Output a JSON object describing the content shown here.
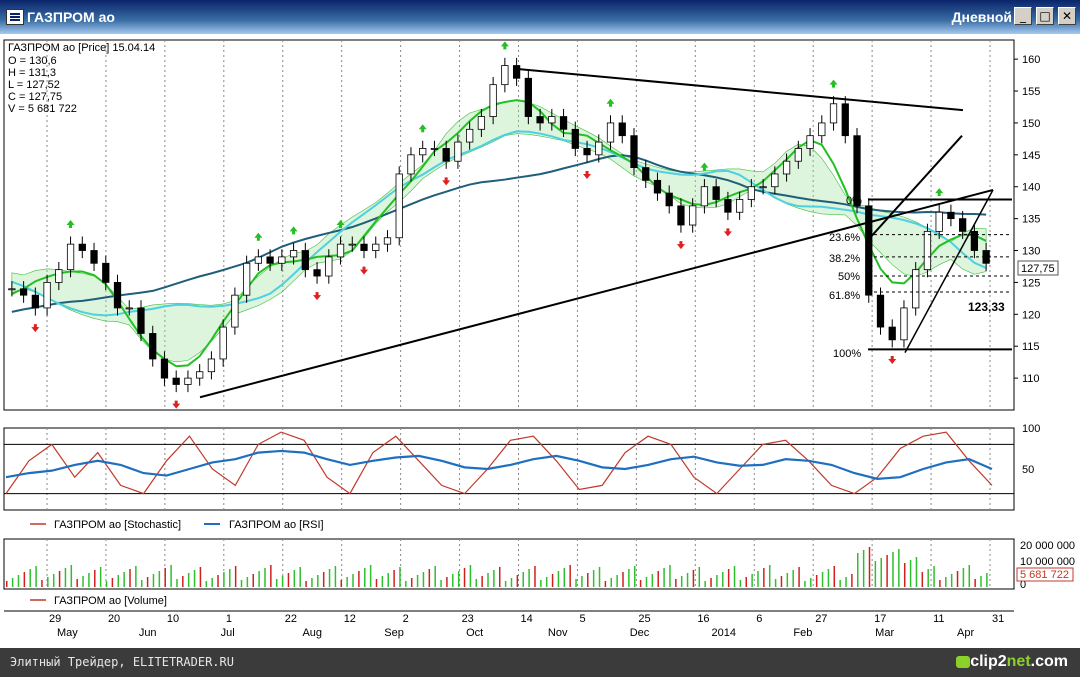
{
  "window": {
    "title": "ГАЗПРОМ ао",
    "period": "Дневной",
    "btn_min": "_",
    "btn_max": "□",
    "btn_close": "✕"
  },
  "info": {
    "header": "ГАЗПРОМ ао [Price] 15.04.14",
    "open": "O = 130,6",
    "high": "H = 131,3",
    "low": "L = 127,52",
    "close": "C = 127,75",
    "volume": "V = 5 681 722"
  },
  "legend": {
    "stochastic": "ГАЗПРОМ ао [Stochastic]",
    "rsi": "ГАЗПРОМ ао [RSI]",
    "volume": "ГАЗПРОМ ао [Volume]"
  },
  "annotations": {
    "current_price": "127,75",
    "target": "123,33",
    "current_volume": "5 681 722"
  },
  "fibo": [
    "0%",
    "23.6%",
    "38.2%",
    "50%",
    "61.8%",
    "100%"
  ],
  "colors": {
    "rsi": "#1f6fc0",
    "stochastic": "#c0392b",
    "up_arrow": "#22c022",
    "down_arrow": "#e02020",
    "cloud": "#9fe09f",
    "ma_long": "#1f5f7a",
    "ma_mid": "#4fd0e0",
    "ma_fast": "#22c022"
  },
  "statusbar": {
    "left": "Элитный Трейдер, ELITETRADER.RU",
    "brand_a": "clip2",
    "brand_b": "net",
    "brand_c": ".com"
  },
  "chart_data": [
    {
      "type": "candlestick",
      "title": "ГАЗПРОМ ао [Price] 15.04.14",
      "ylim": [
        105,
        163
      ],
      "y_ticks": [
        110,
        115,
        120,
        125,
        130,
        135,
        140,
        145,
        150,
        155,
        160
      ],
      "x_day_labels": [
        "29",
        "20",
        "10",
        "1",
        "22",
        "12",
        "2",
        "23",
        "14",
        "5",
        "25",
        "16",
        "6",
        "27",
        "17",
        "11",
        "31"
      ],
      "x_month_labels": [
        "May",
        "Jun",
        "Jul",
        "Aug",
        "Sep",
        "Oct",
        "Nov",
        "Dec",
        "2014",
        "Feb",
        "Mar",
        "Apr"
      ],
      "close": [
        124,
        123,
        121,
        125,
        127,
        131,
        130,
        128,
        125,
        121,
        121,
        117,
        113,
        110,
        109,
        110,
        111,
        113,
        118,
        123,
        128,
        129,
        128,
        129,
        130,
        127,
        126,
        129,
        131,
        131,
        130,
        131,
        132,
        142,
        145,
        146,
        146,
        144,
        147,
        149,
        151,
        156,
        159,
        157,
        151,
        150,
        151,
        149,
        146,
        145,
        147,
        150,
        148,
        143,
        141,
        139,
        137,
        134,
        137,
        140,
        138,
        136,
        138,
        140,
        140,
        142,
        144,
        146,
        148,
        150,
        153,
        148,
        137,
        123,
        118,
        116,
        121,
        127,
        133,
        136,
        135,
        133,
        130,
        128
      ],
      "last_close": 127.75,
      "target": 123.33,
      "fibonacci_levels": [
        "0%",
        "23.6%",
        "38.2%",
        "50%",
        "61.8%",
        "100%"
      ],
      "overlays": [
        "Ichimoku cloud",
        "moving averages",
        "trend lines"
      ]
    },
    {
      "type": "line",
      "ylim": [
        0,
        100
      ],
      "y_ticks": [
        50,
        100
      ],
      "series": [
        {
          "name": "ГАЗПРОМ ао [Stochastic]",
          "values": [
            20,
            60,
            80,
            40,
            70,
            30,
            20,
            60,
            90,
            50,
            30,
            80,
            95,
            85,
            40,
            20,
            70,
            90,
            60,
            30,
            20,
            50,
            85,
            90,
            60,
            25,
            30,
            70,
            90,
            80,
            40,
            20,
            50,
            80,
            85,
            60,
            30,
            20,
            40,
            75,
            90,
            95,
            60,
            30
          ]
        },
        {
          "name": "ГАЗПРОМ ао [RSI]",
          "values": [
            40,
            45,
            48,
            55,
            60,
            55,
            45,
            42,
            50,
            58,
            62,
            70,
            72,
            70,
            62,
            55,
            60,
            64,
            66,
            60,
            52,
            50,
            55,
            62,
            66,
            60,
            52,
            50,
            55,
            62,
            65,
            58,
            54,
            55,
            62,
            60,
            55,
            45,
            38,
            40,
            50,
            58,
            62,
            50
          ]
        }
      ]
    },
    {
      "type": "bar",
      "title": "ГАЗПРОМ ао [Volume]",
      "y_ticks": [
        "20 000 000",
        "10 000 000",
        "0"
      ],
      "last_value": 5681722
    }
  ]
}
